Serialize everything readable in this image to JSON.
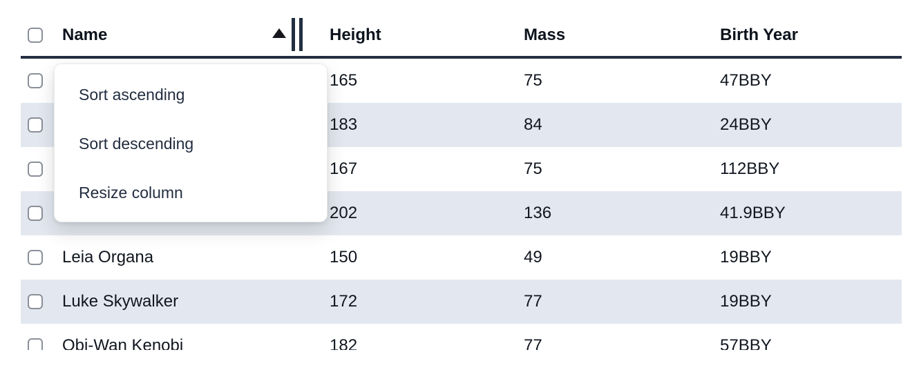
{
  "table": {
    "columns": [
      {
        "key": "name",
        "label": "Name",
        "sort": "ascending"
      },
      {
        "key": "height",
        "label": "Height",
        "sort": null
      },
      {
        "key": "mass",
        "label": "Mass",
        "sort": null
      },
      {
        "key": "birth_year",
        "label": "Birth Year",
        "sort": null
      }
    ],
    "rows": [
      {
        "name": "",
        "height": "165",
        "mass": "75",
        "birth_year": "47BBY",
        "striped": false,
        "name_covered_by_menu": true
      },
      {
        "name": "",
        "height": "183",
        "mass": "84",
        "birth_year": "24BBY",
        "striped": true,
        "name_covered_by_menu": true
      },
      {
        "name": "",
        "height": "167",
        "mass": "75",
        "birth_year": "112BBY",
        "striped": false,
        "name_covered_by_menu": true
      },
      {
        "name": "",
        "height": "202",
        "mass": "136",
        "birth_year": "41.9BBY",
        "striped": true,
        "name_covered_by_menu": true
      },
      {
        "name": "Leia Organa",
        "height": "150",
        "mass": "49",
        "birth_year": "19BBY",
        "striped": false,
        "name_covered_by_menu": false
      },
      {
        "name": "Luke Skywalker",
        "height": "172",
        "mass": "77",
        "birth_year": "19BBY",
        "striped": true,
        "name_covered_by_menu": false
      },
      {
        "name": "Obi-Wan Kenobi",
        "height": "182",
        "mass": "77",
        "birth_year": "57BBY",
        "striped": false,
        "name_covered_by_menu": false
      }
    ]
  },
  "menu": {
    "items": [
      {
        "label": "Sort ascending"
      },
      {
        "label": "Sort descending"
      },
      {
        "label": "Resize column"
      }
    ]
  },
  "icons": {
    "sort_ascending": "triangle-up",
    "resize_handle": "double-vertical-bars",
    "row_selector": "checkbox-unchecked"
  },
  "colors": {
    "row_stripe": "#e3e8f0",
    "header_border": "#232e41",
    "table_text": "#10161f",
    "menu_text": "#222d40",
    "checkbox_border": "#8a8f98",
    "menu_background": "#ffffff"
  }
}
